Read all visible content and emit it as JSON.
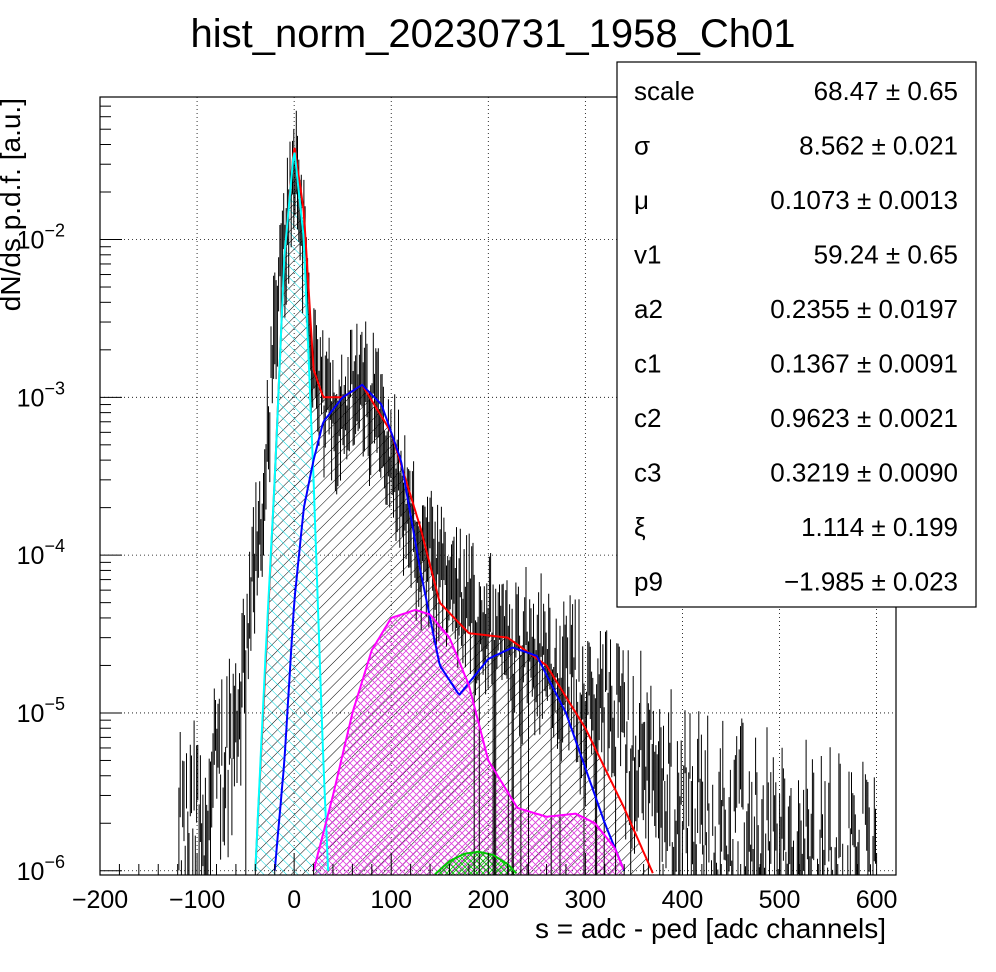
{
  "chart_data": {
    "type": "line",
    "title": "hist_norm_20230731_1958_Ch01",
    "xlabel": "s = adc - ped [adc channels]",
    "ylabel": "dN/ds p.d.f. [a.u.]",
    "x_scale": "linear",
    "y_scale": "log",
    "xlim": [
      -200,
      620
    ],
    "ylim": [
      9.4e-07,
      0.08
    ],
    "grid": true,
    "x_ticks": [
      "−200",
      "−100",
      "0",
      "100",
      "200",
      "300",
      "400",
      "500",
      "600"
    ],
    "y_tick_values": [
      1e-06,
      1e-05,
      0.0001,
      0.001,
      0.01
    ],
    "y_tick_exponents": [
      "−6",
      "−5",
      "−4",
      "−3",
      "−2"
    ],
    "y_tick_base": "10",
    "stats_box": {
      "placement": "top-right",
      "entries": [
        {
          "name": "scale",
          "value": "68.47 ± 0.65"
        },
        {
          "name": "σ",
          "value": "8.562 ± 0.021"
        },
        {
          "name": "μ",
          "value": "0.1073 ± 0.0013"
        },
        {
          "name": "v1",
          "value": "59.24 ± 0.65"
        },
        {
          "name": "a2",
          "value": "0.2355 ± 0.0197"
        },
        {
          "name": "c1",
          "value": "0.1367 ± 0.0091"
        },
        {
          "name": "c2",
          "value": "0.9623 ± 0.0021"
        },
        {
          "name": "c3",
          "value": "0.3219 ± 0.0090"
        },
        {
          "name": "ξ",
          "value": "1.114 ± 0.199"
        },
        {
          "name": "p9",
          "value": "−1.985 ± 0.023"
        }
      ]
    },
    "series": [
      {
        "color": "#ff0000",
        "kind": "total-fit",
        "x": [
          -40,
          -20,
          -10,
          0,
          10,
          20,
          30,
          50,
          70,
          100,
          130,
          150,
          180,
          220,
          260,
          300,
          340,
          370
        ],
        "y": [
          1e-06,
          0.0003,
          0.008,
          0.04,
          0.015,
          0.0015,
          0.001,
          0.001,
          0.0012,
          0.0006,
          0.00015,
          5e-05,
          3.2e-05,
          3e-05,
          2e-05,
          8e-06,
          2.5e-06,
          9.5e-07
        ]
      },
      {
        "color": "#00ffff",
        "kind": "pedestal-component",
        "x": [
          -40,
          -30,
          -20,
          -10,
          0,
          10,
          20,
          30,
          35
        ],
        "y": [
          1e-06,
          2e-05,
          0.0003,
          0.008,
          0.038,
          0.01,
          0.0003,
          5e-06,
          1e-06
        ]
      },
      {
        "color": "#0000ff",
        "kind": "single-pe-component",
        "x": [
          -20,
          -10,
          0,
          10,
          20,
          30,
          50,
          70,
          90,
          110,
          130,
          150,
          170,
          200,
          225,
          250,
          280,
          320,
          340
        ],
        "y": [
          1e-06,
          5e-06,
          5e-05,
          0.0002,
          0.0004,
          0.0007,
          0.001,
          0.0012,
          0.0009,
          0.0004,
          8e-05,
          2e-05,
          1.3e-05,
          2.2e-05,
          2.6e-05,
          2.3e-05,
          1e-05,
          2e-06,
          1e-06
        ]
      },
      {
        "color": "#ff00ff",
        "kind": "double-pe-component",
        "x": [
          20,
          40,
          60,
          80,
          100,
          125,
          140,
          160,
          180,
          200,
          230,
          260,
          290,
          310,
          330,
          340
        ],
        "y": [
          1e-06,
          3e-06,
          1e-05,
          2.5e-05,
          4e-05,
          4.5e-05,
          4.2e-05,
          3e-05,
          1.5e-05,
          5e-06,
          2.5e-06,
          2.2e-06,
          2.3e-06,
          2e-06,
          1.4e-06,
          1e-06
        ]
      },
      {
        "color": "#00c800",
        "kind": "triple-pe-component",
        "x": [
          145,
          160,
          175,
          190,
          205,
          220,
          230
        ],
        "y": [
          9.5e-07,
          1.15e-06,
          1.28e-06,
          1.32e-06,
          1.26e-06,
          1.1e-06,
          9.5e-07
        ]
      }
    ],
    "histogram": {
      "color": "#000000",
      "x": [
        -120,
        -100,
        -80,
        -60,
        -50,
        -40,
        -30,
        -20,
        -10,
        0,
        10,
        20,
        30,
        40,
        50,
        60,
        70,
        80,
        90,
        100,
        110,
        120,
        130,
        140,
        150,
        160,
        170,
        180,
        190,
        200,
        220,
        240,
        260,
        280,
        300,
        330,
        360,
        400,
        450,
        500,
        550,
        600
      ],
      "y": [
        1.5e-06,
        2e-06,
        4e-06,
        1e-05,
        3e-05,
        0.0001,
        0.0003,
        0.003,
        0.01,
        0.04,
        0.012,
        0.0014,
        0.001,
        0.001,
        0.00105,
        0.00115,
        0.0012,
        0.0011,
        0.0009,
        0.0005,
        0.0003,
        0.00018,
        0.00012,
        0.0001,
        8e-05,
        7e-05,
        6e-05,
        5e-05,
        4.5e-05,
        4e-05,
        3.5e-05,
        3e-05,
        2.5e-05,
        2e-05,
        1.5e-05,
        1e-05,
        6e-06,
        3e-06,
        2e-06,
        1.5e-06,
        1.3e-06,
        1.2e-06
      ]
    }
  }
}
